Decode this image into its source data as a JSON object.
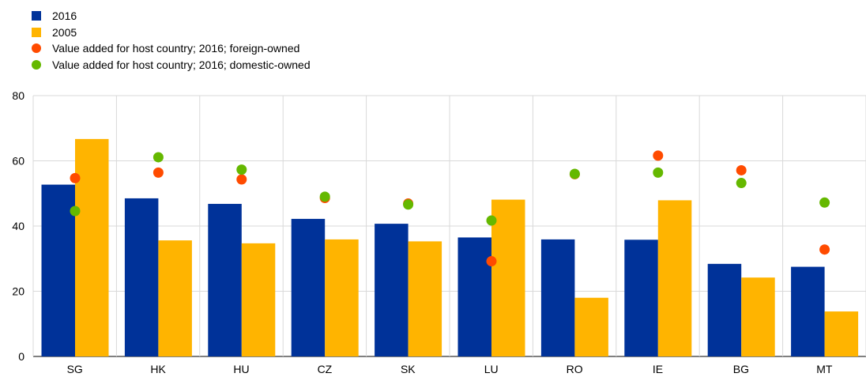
{
  "chart_data": {
    "type": "bar",
    "title": "",
    "xlabel": "",
    "ylabel": "",
    "categories": [
      "SG",
      "HK",
      "HU",
      "CZ",
      "SK",
      "LU",
      "RO",
      "IE",
      "BG",
      "MT"
    ],
    "ylim": [
      0,
      80
    ],
    "yticks": [
      0,
      20,
      40,
      60,
      80
    ],
    "grid": "vertical-and-horizontal",
    "legend_position": "top-left",
    "series": [
      {
        "name": "2016",
        "kind": "bar",
        "color": "#003299",
        "values": [
          52.7,
          48.5,
          46.8,
          42.2,
          40.7,
          36.5,
          35.9,
          35.8,
          28.4,
          27.5
        ]
      },
      {
        "name": "2005",
        "kind": "bar",
        "color": "#FFB400",
        "values": [
          66.7,
          35.6,
          34.7,
          35.9,
          35.3,
          48.1,
          18.0,
          47.9,
          24.2,
          13.8
        ]
      },
      {
        "name": "Value added for host country; 2016; foreign-owned",
        "kind": "dot",
        "color": "#FF4B00",
        "values": [
          54.7,
          56.4,
          54.3,
          48.6,
          46.9,
          29.2,
          55.9,
          61.6,
          57.1,
          32.8
        ]
      },
      {
        "name": "Value added for host country; 2016; domestic-owned",
        "kind": "dot",
        "color": "#65B800",
        "values": [
          44.6,
          61.1,
          57.3,
          49.0,
          46.6,
          41.7,
          56.0,
          56.4,
          53.2,
          47.2
        ]
      }
    ]
  }
}
